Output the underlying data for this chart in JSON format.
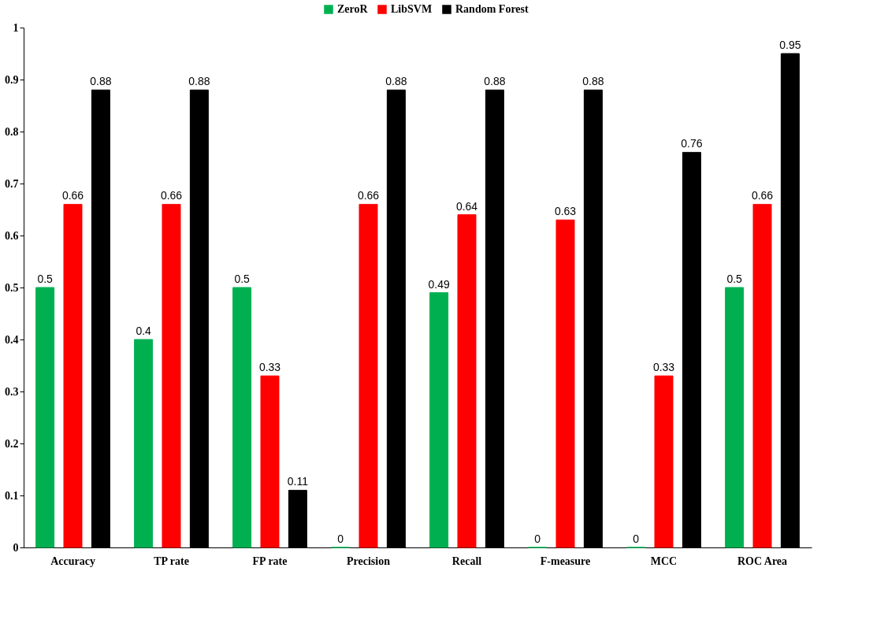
{
  "chart_data": {
    "type": "bar",
    "categories": [
      "Accuracy",
      "TP rate",
      "FP rate",
      "Precision",
      "Recall",
      "F-measure",
      "MCC",
      "ROC Area"
    ],
    "series": [
      {
        "name": "ZeroR",
        "color": "#00b050",
        "values": [
          0.5,
          0.4,
          0.5,
          0,
          0.49,
          0,
          0,
          0.5
        ]
      },
      {
        "name": "LibSVM",
        "color": "#ff0000",
        "values": [
          0.66,
          0.66,
          0.33,
          0.66,
          0.64,
          0.63,
          0.33,
          0.66
        ]
      },
      {
        "name": "Random Forest",
        "color": "#000000",
        "values": [
          0.88,
          0.88,
          0.11,
          0.88,
          0.88,
          0.88,
          0.76,
          0.95
        ]
      }
    ],
    "ylim": [
      0,
      1
    ],
    "yticks": [
      0,
      0.1,
      0.2,
      0.3,
      0.4,
      0.5,
      0.6,
      0.7,
      0.8,
      0.9,
      1
    ],
    "data_labels": true,
    "grid": false,
    "legend": "top"
  }
}
